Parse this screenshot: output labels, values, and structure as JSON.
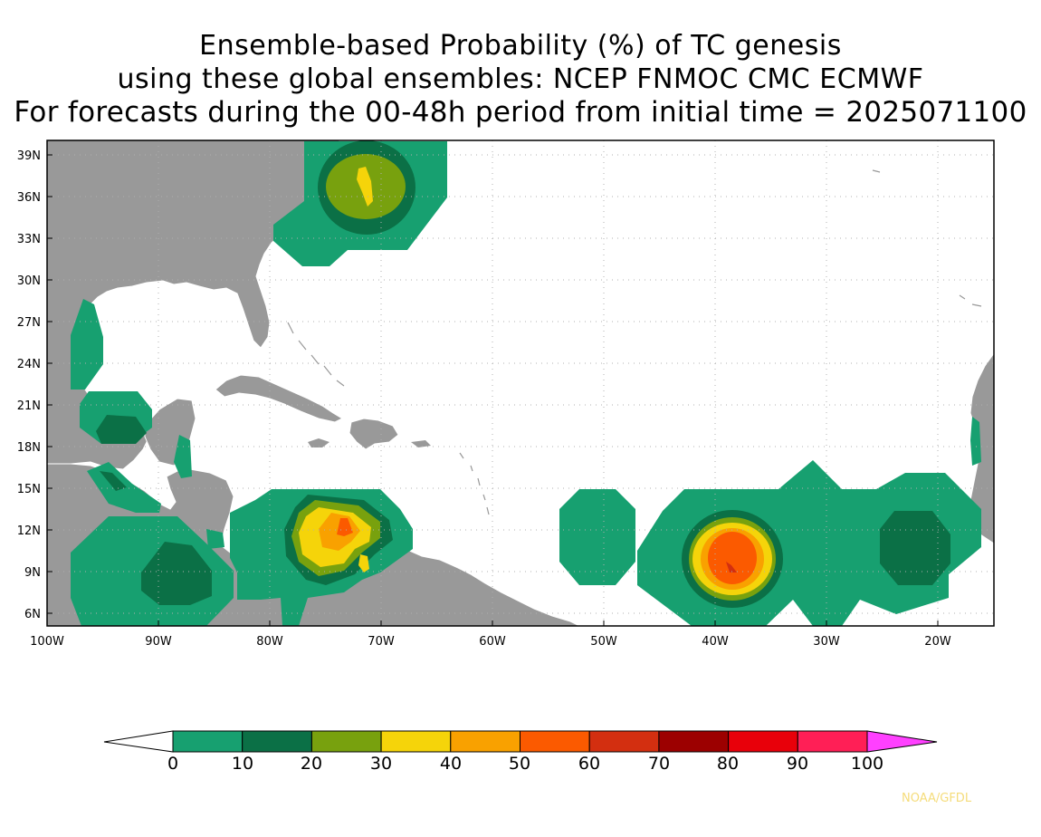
{
  "title": {
    "line1": "Ensemble-based Probability (%) of TC genesis",
    "line2": "using these global ensembles:   NCEP FNMOC CMC ECMWF",
    "line3": "For forecasts during the 00-48h period from initial time = 2025071100"
  },
  "map": {
    "lat_labels": [
      "39N",
      "36N",
      "33N",
      "30N",
      "27N",
      "24N",
      "21N",
      "18N",
      "15N",
      "12N",
      "9N",
      "6N"
    ],
    "lon_labels": [
      "100W",
      "90W",
      "80W",
      "70W",
      "60W",
      "50W",
      "40W",
      "30W",
      "20W"
    ],
    "lon_range": [
      -100,
      -15
    ],
    "lat_range": [
      5,
      40
    ],
    "land_color": "#999999",
    "ocean_color": "#ffffff"
  },
  "colorbar": {
    "labels": [
      "0",
      "10",
      "20",
      "30",
      "40",
      "50",
      "60",
      "70",
      "80",
      "90",
      "100"
    ],
    "colors": [
      "#17a070",
      "#0b7046",
      "#78a10e",
      "#f5d40a",
      "#f9a100",
      "#fb5a00",
      "#d32f10",
      "#9c0000",
      "#e8000a",
      "#ff1f56"
    ],
    "below_color": "#ffffff",
    "above_color": "#ff40ff"
  },
  "credit": "NOAA/GFDL"
}
